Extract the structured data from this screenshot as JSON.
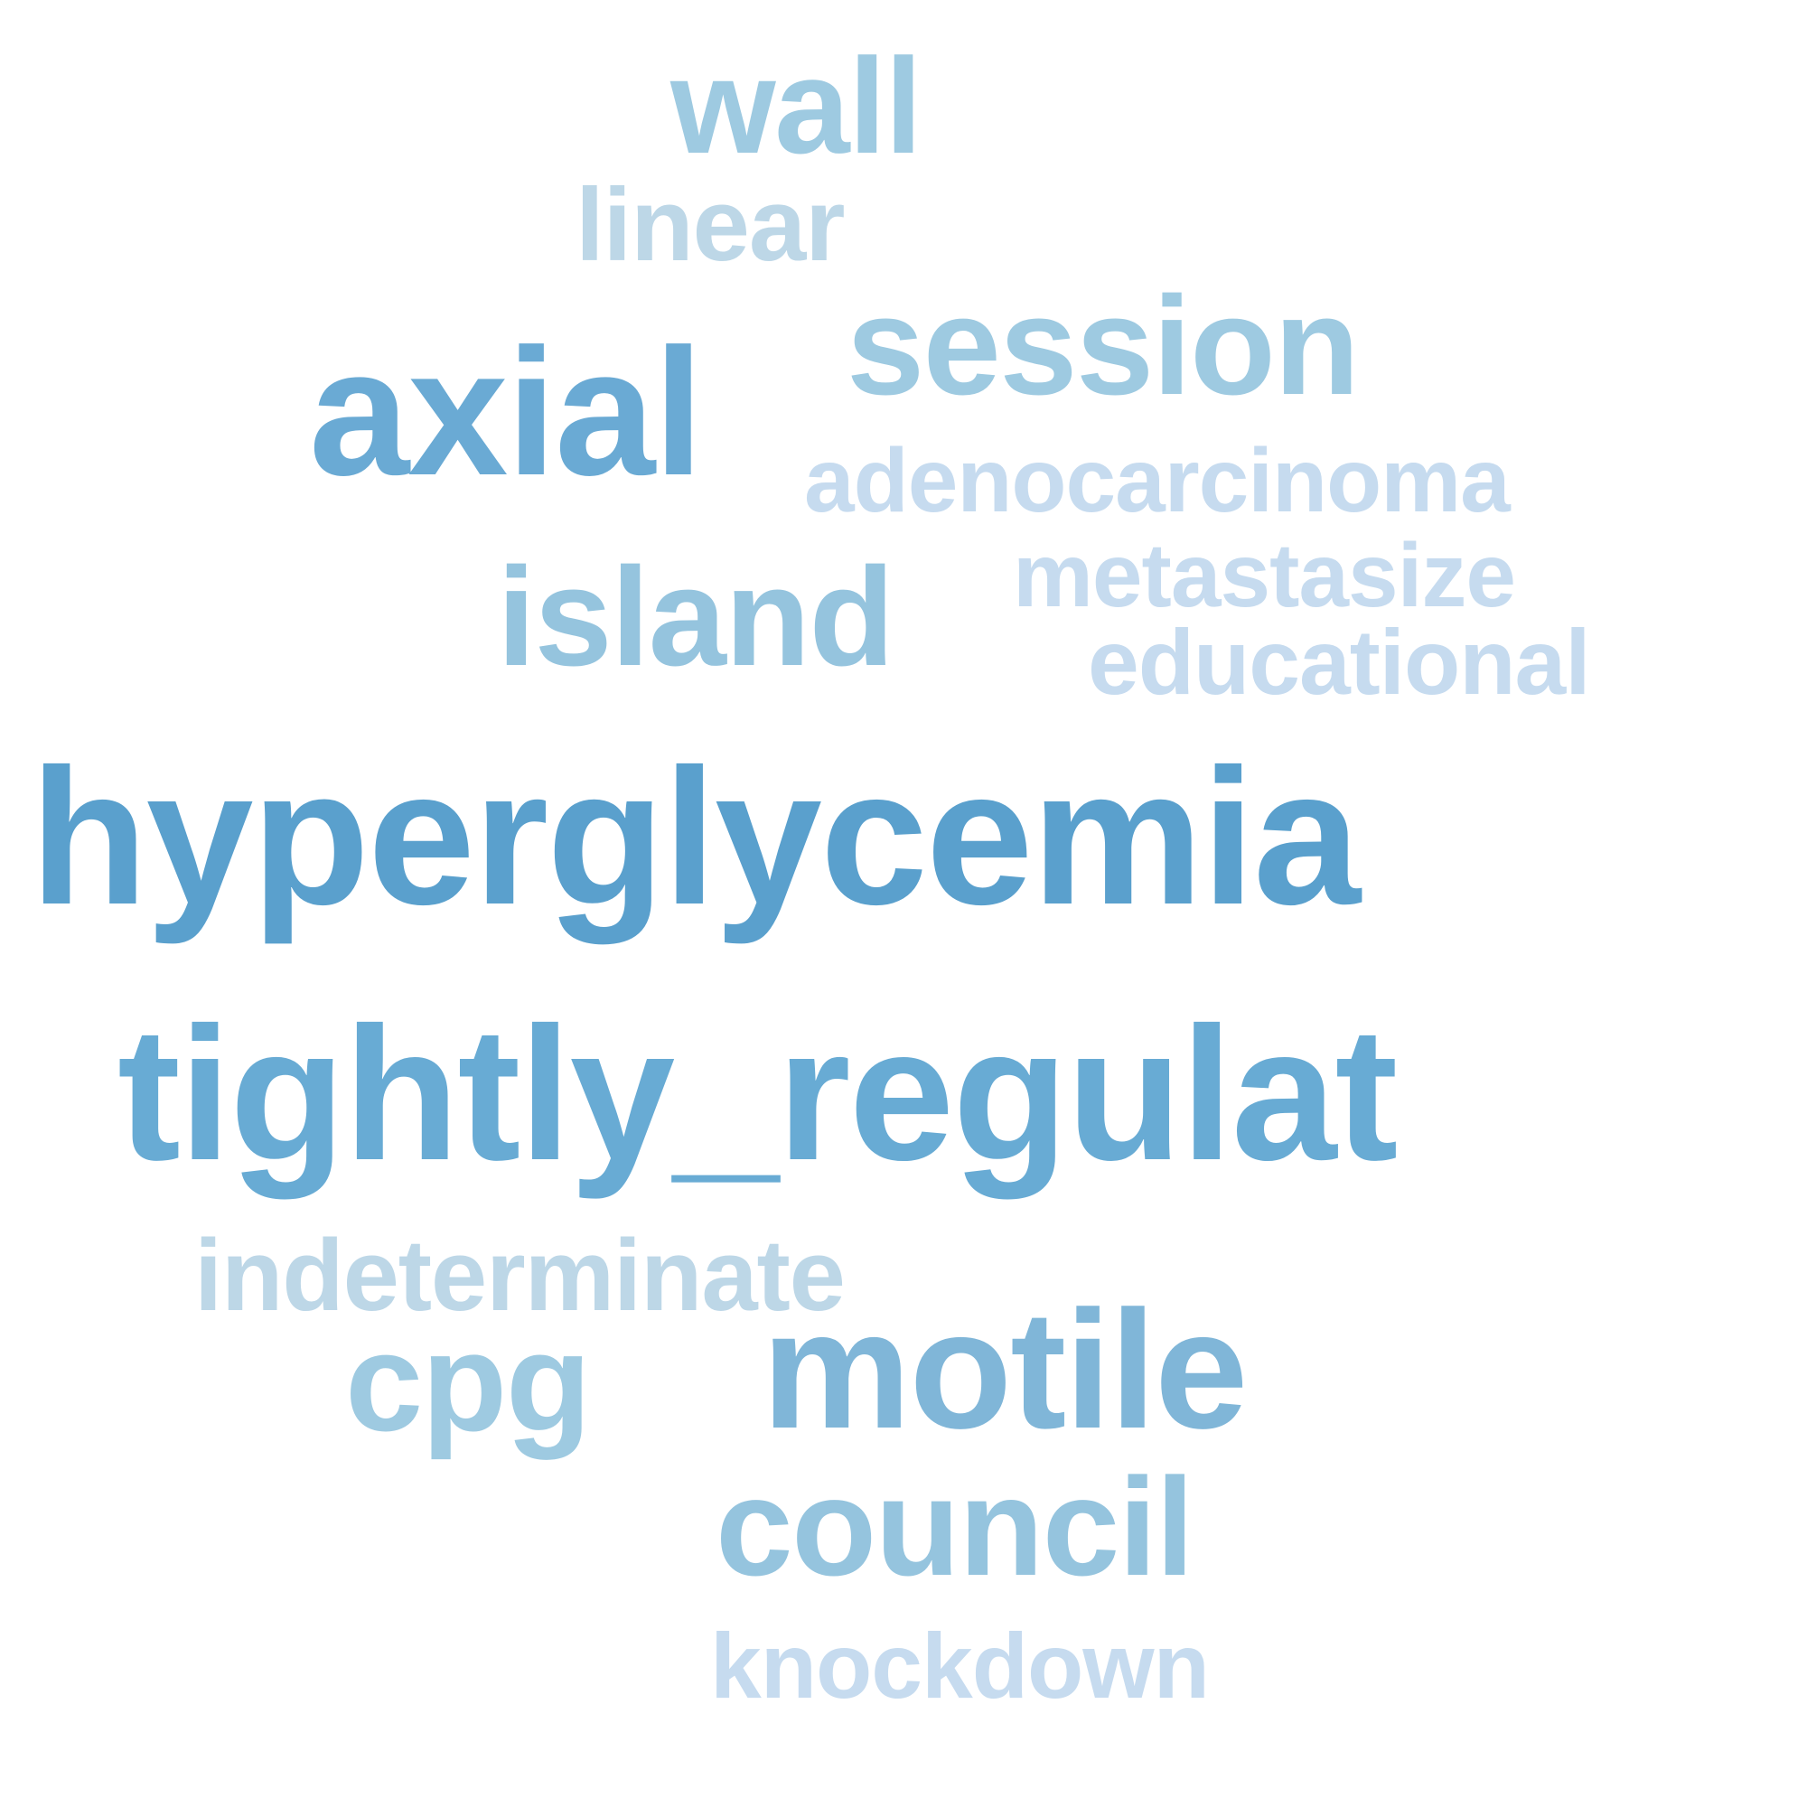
{
  "words": [
    {
      "text": "wall",
      "color": "#9ecae1"
    },
    {
      "text": "linear",
      "color": "#bdd7e7"
    },
    {
      "text": "axial",
      "color": "#6aaad4"
    },
    {
      "text": "session",
      "color": "#9ecae1"
    },
    {
      "text": "adenocarcinoma",
      "color": "#c6dbef"
    },
    {
      "text": "island",
      "color": "#95c4de"
    },
    {
      "text": "metastasize",
      "color": "#c6dbef"
    },
    {
      "text": "educational",
      "color": "#c6dbef"
    },
    {
      "text": "hyperglycemia",
      "color": "#5aa0cd"
    },
    {
      "text": "tightly_regulat",
      "color": "#68abd4"
    },
    {
      "text": "indeterminate",
      "color": "#bdd7e7"
    },
    {
      "text": "cpg",
      "color": "#9ecae1"
    },
    {
      "text": "motile",
      "color": "#80b6d8"
    },
    {
      "text": "council",
      "color": "#95c4de"
    },
    {
      "text": "knockdown",
      "color": "#c6dbef"
    }
  ]
}
